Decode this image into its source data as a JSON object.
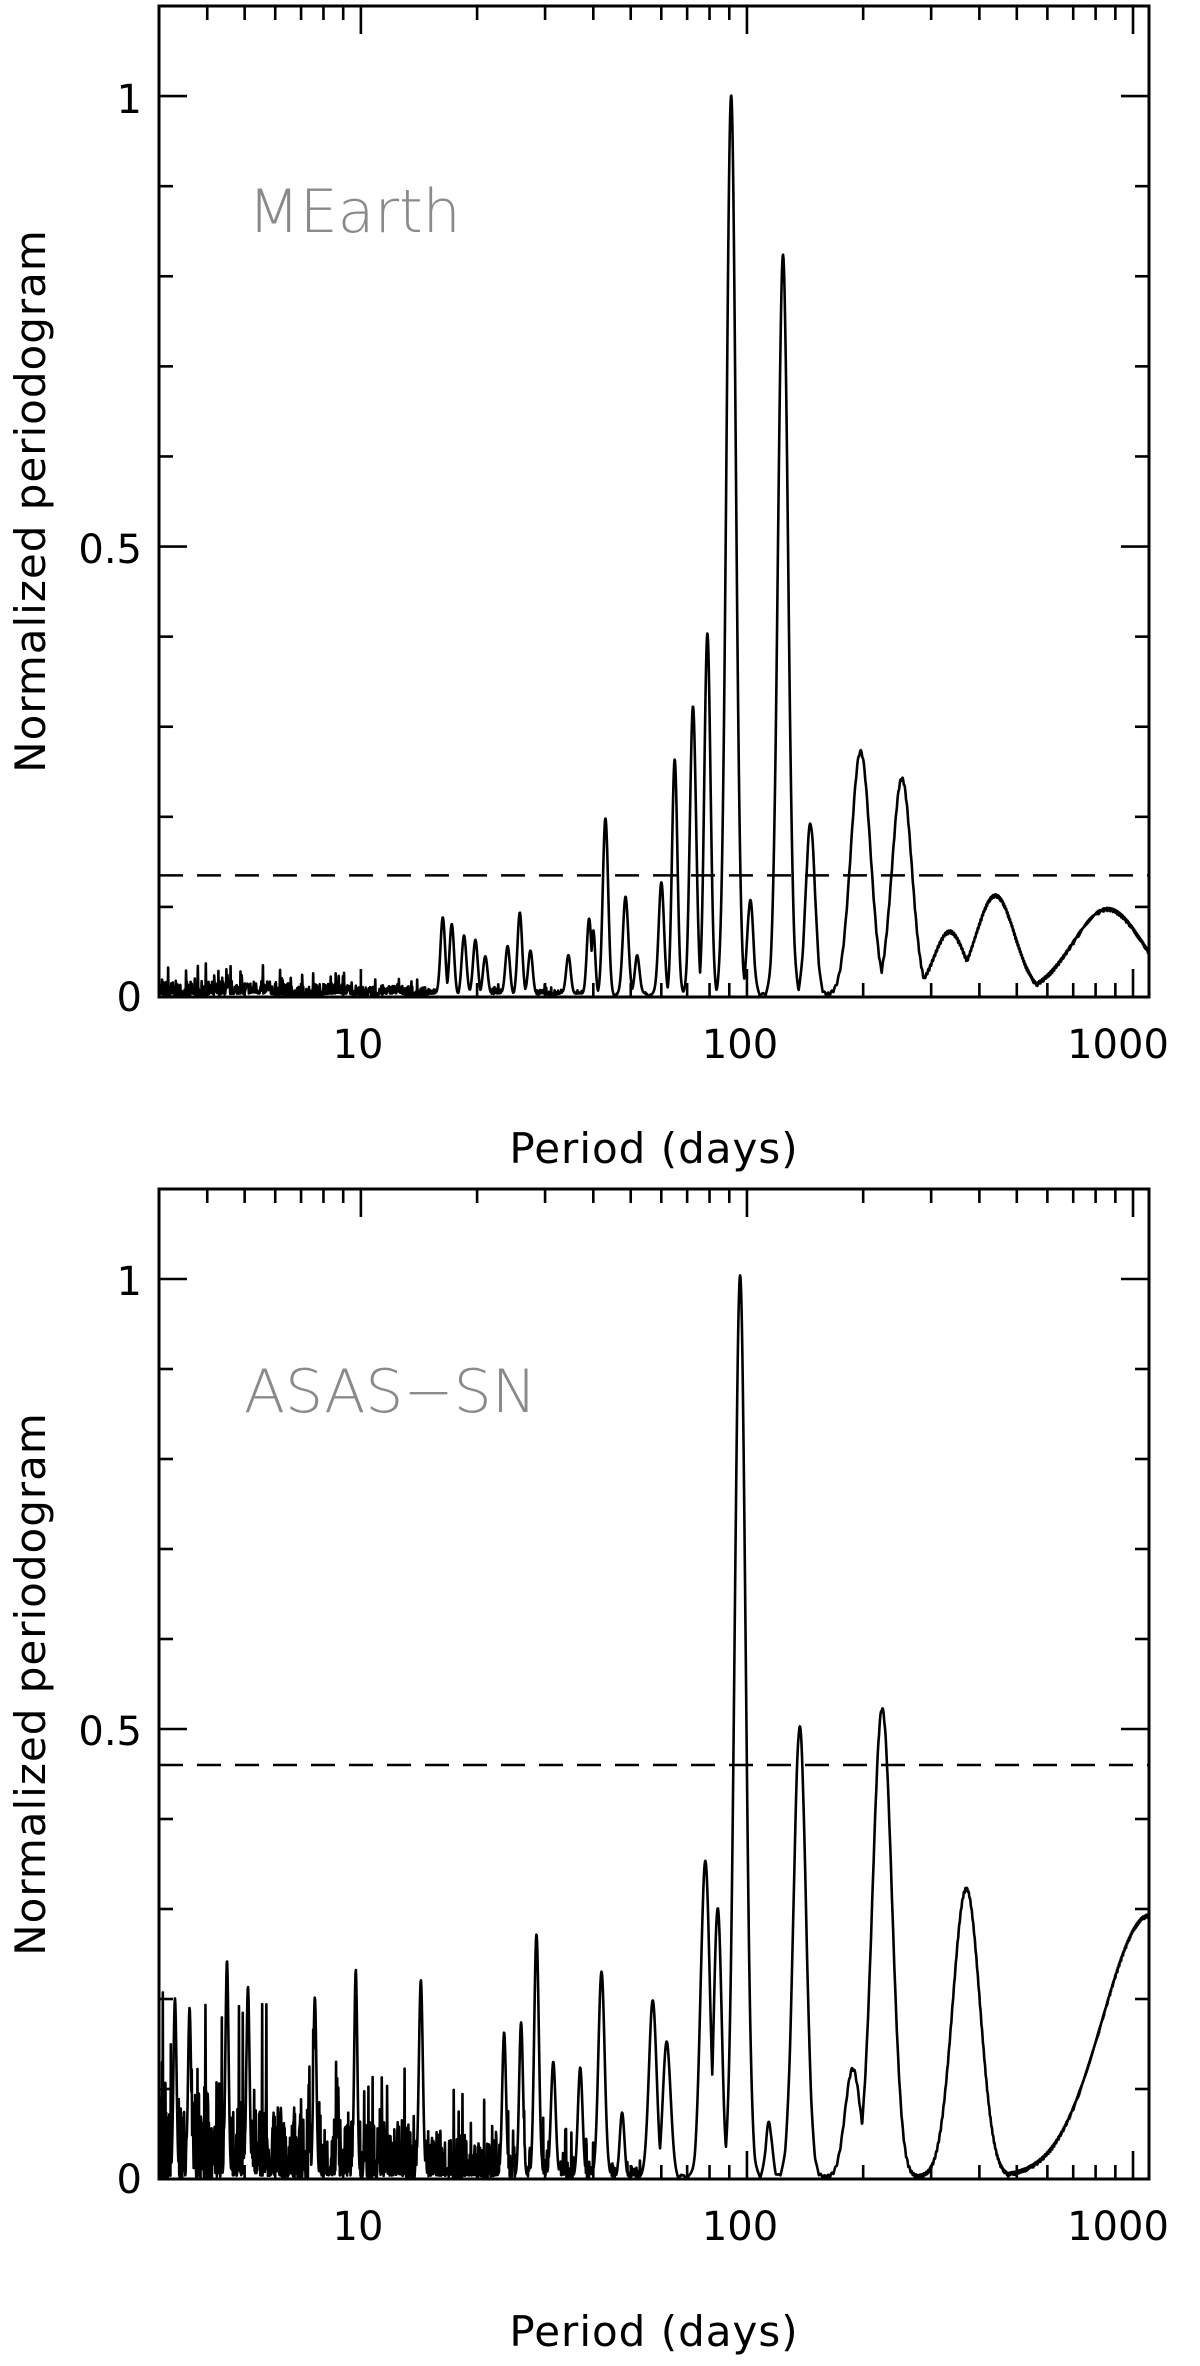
{
  "chart_data": [
    {
      "type": "line",
      "panel": "top",
      "annotation": "MEarth",
      "xlabel": "Period (days)",
      "ylabel": "Normalized periodogram",
      "xscale": "log",
      "xlim": [
        3,
        1100
      ],
      "ylim": [
        0,
        1.1
      ],
      "xticks": [
        10,
        100,
        1000
      ],
      "xtick_labels": [
        "10",
        "100",
        "1000"
      ],
      "yticks": [
        0,
        0.5,
        1
      ],
      "ytick_labels": [
        "0",
        "0.5",
        "1"
      ],
      "threshold": 0.135,
      "peaks": [
        {
          "period": 16.3,
          "power": 0.085,
          "width": 0.006
        },
        {
          "period": 17.2,
          "power": 0.08,
          "width": 0.006
        },
        {
          "period": 18.5,
          "power": 0.065,
          "width": 0.006
        },
        {
          "period": 19.8,
          "power": 0.06,
          "width": 0.006
        },
        {
          "period": 21.0,
          "power": 0.045,
          "width": 0.006
        },
        {
          "period": 24.0,
          "power": 0.055,
          "width": 0.006
        },
        {
          "period": 25.8,
          "power": 0.09,
          "width": 0.006
        },
        {
          "period": 27.5,
          "power": 0.05,
          "width": 0.006
        },
        {
          "period": 34.5,
          "power": 0.045,
          "width": 0.006
        },
        {
          "period": 39.0,
          "power": 0.085,
          "width": 0.006
        },
        {
          "period": 40.0,
          "power": 0.07,
          "width": 0.005
        },
        {
          "period": 43.0,
          "power": 0.195,
          "width": 0.007
        },
        {
          "period": 48.5,
          "power": 0.11,
          "width": 0.007
        },
        {
          "period": 52.0,
          "power": 0.045,
          "width": 0.006
        },
        {
          "period": 60.0,
          "power": 0.125,
          "width": 0.007
        },
        {
          "period": 65.0,
          "power": 0.26,
          "width": 0.007
        },
        {
          "period": 72.5,
          "power": 0.32,
          "width": 0.008
        },
        {
          "period": 79.0,
          "power": 0.4,
          "width": 0.008
        },
        {
          "period": 91.0,
          "power": 1.0,
          "width": 0.012
        },
        {
          "period": 102.0,
          "power": 0.105,
          "width": 0.008
        },
        {
          "period": 124.0,
          "power": 0.82,
          "width": 0.013
        },
        {
          "period": 146.0,
          "power": 0.19,
          "width": 0.012
        },
        {
          "period": 197.0,
          "power": 0.27,
          "width": 0.025
        },
        {
          "period": 252.0,
          "power": 0.24,
          "width": 0.025
        },
        {
          "period": 335.0,
          "power": 0.07,
          "width": 0.04
        },
        {
          "period": 440.0,
          "power": 0.11,
          "width": 0.05
        },
        {
          "period": 860.0,
          "power": 0.095,
          "width": 0.09
        }
      ],
      "noise_level": 0.018
    },
    {
      "type": "line",
      "panel": "bottom",
      "annotation": "ASAS−SN",
      "xlabel": "Period (days)",
      "ylabel": "Normalized periodogram",
      "xscale": "log",
      "xlim": [
        3,
        1100
      ],
      "ylim": [
        0,
        1.1
      ],
      "xticks": [
        10,
        100,
        1000
      ],
      "xtick_labels": [
        "10",
        "100",
        "1000"
      ],
      "yticks": [
        0,
        0.5,
        1
      ],
      "ytick_labels": [
        "0",
        "0.5",
        "1"
      ],
      "threshold": 0.46,
      "peaks": [
        {
          "period": 3.3,
          "power": 0.2,
          "width": 0.004
        },
        {
          "period": 3.6,
          "power": 0.19,
          "width": 0.004
        },
        {
          "period": 4.5,
          "power": 0.24,
          "width": 0.004
        },
        {
          "period": 5.1,
          "power": 0.21,
          "width": 0.004
        },
        {
          "period": 7.6,
          "power": 0.2,
          "width": 0.004
        },
        {
          "period": 9.7,
          "power": 0.23,
          "width": 0.004
        },
        {
          "period": 14.3,
          "power": 0.22,
          "width": 0.005
        },
        {
          "period": 23.5,
          "power": 0.16,
          "width": 0.005
        },
        {
          "period": 26.0,
          "power": 0.17,
          "width": 0.005
        },
        {
          "period": 28.5,
          "power": 0.27,
          "width": 0.006
        },
        {
          "period": 31.5,
          "power": 0.13,
          "width": 0.006
        },
        {
          "period": 37.0,
          "power": 0.12,
          "width": 0.006
        },
        {
          "period": 42.0,
          "power": 0.23,
          "width": 0.008
        },
        {
          "period": 47.5,
          "power": 0.07,
          "width": 0.006
        },
        {
          "period": 57.0,
          "power": 0.195,
          "width": 0.01
        },
        {
          "period": 62.0,
          "power": 0.15,
          "width": 0.01
        },
        {
          "period": 78.0,
          "power": 0.35,
          "width": 0.012
        },
        {
          "period": 84.0,
          "power": 0.3,
          "width": 0.01
        },
        {
          "period": 96.0,
          "power": 1.0,
          "width": 0.014
        },
        {
          "period": 114.0,
          "power": 0.06,
          "width": 0.008
        },
        {
          "period": 137.0,
          "power": 0.5,
          "width": 0.016
        },
        {
          "period": 188.0,
          "power": 0.12,
          "width": 0.02
        },
        {
          "period": 224.0,
          "power": 0.52,
          "width": 0.025
        },
        {
          "period": 370.0,
          "power": 0.32,
          "width": 0.035
        },
        {
          "period": 1100.0,
          "power": 0.29,
          "width": 0.12
        }
      ],
      "noise_level": 0.11
    }
  ]
}
